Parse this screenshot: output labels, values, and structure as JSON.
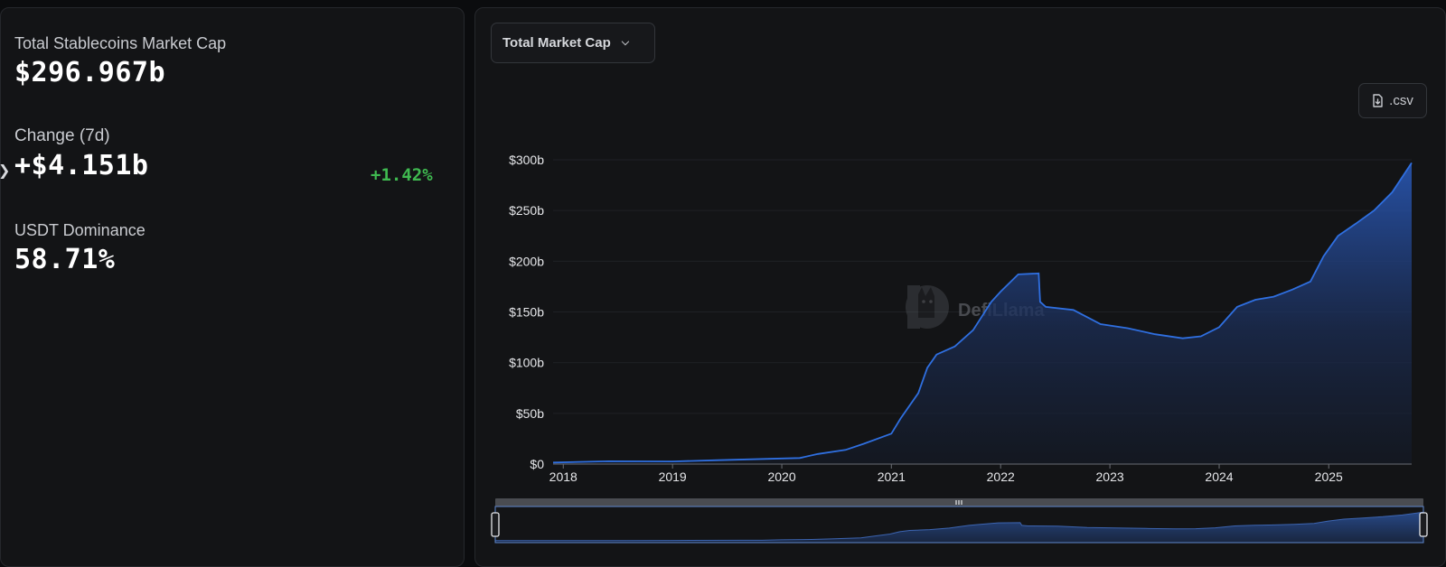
{
  "stats": {
    "total_label": "Total Stablecoins Market Cap",
    "total_value": "$296.967b",
    "change_label": "Change (7d)",
    "change_value": "+$4.151b",
    "change_pct": "+1.42%",
    "dominance_label": "USDT Dominance",
    "dominance_value": "58.71%"
  },
  "controls": {
    "metric_select": "Total Market Cap",
    "csv_label": ".csv"
  },
  "watermark": "DefiLlama",
  "colors": {
    "accent": "#2f6fe0",
    "positive": "#3fb950",
    "background": "#131416"
  },
  "chart_data": {
    "type": "area",
    "title": "",
    "xlabel": "",
    "ylabel": "",
    "ylim": [
      0,
      300
    ],
    "y_ticks": [
      0,
      50,
      100,
      150,
      200,
      250,
      300
    ],
    "y_tick_labels": [
      "$0",
      "$50b",
      "$100b",
      "$150b",
      "$200b",
      "$250b",
      "$300b"
    ],
    "x_ticks": [
      "2018",
      "2019",
      "2020",
      "2021",
      "2022",
      "2023",
      "2024",
      "2025"
    ],
    "xlim": [
      "2017-11-28",
      "2025-10-05"
    ],
    "grid": true,
    "series": [
      {
        "values": [
          {
            "x": "2017-11-28",
            "y": 1.5
          },
          {
            "x": "2018-06-01",
            "y": 2.8
          },
          {
            "x": "2019-01-01",
            "y": 2.6
          },
          {
            "x": "2019-06-01",
            "y": 3.8
          },
          {
            "x": "2020-01-01",
            "y": 5.5
          },
          {
            "x": "2020-03-01",
            "y": 6
          },
          {
            "x": "2020-05-01",
            "y": 10
          },
          {
            "x": "2020-08-01",
            "y": 14
          },
          {
            "x": "2020-10-01",
            "y": 20
          },
          {
            "x": "2021-01-01",
            "y": 30
          },
          {
            "x": "2021-02-01",
            "y": 45
          },
          {
            "x": "2021-04-01",
            "y": 70
          },
          {
            "x": "2021-05-01",
            "y": 95
          },
          {
            "x": "2021-06-01",
            "y": 108
          },
          {
            "x": "2021-08-01",
            "y": 116
          },
          {
            "x": "2021-10-01",
            "y": 132
          },
          {
            "x": "2021-12-01",
            "y": 160
          },
          {
            "x": "2022-01-01",
            "y": 170
          },
          {
            "x": "2022-03-01",
            "y": 187
          },
          {
            "x": "2022-05-08",
            "y": 188
          },
          {
            "x": "2022-05-13",
            "y": 160
          },
          {
            "x": "2022-06-01",
            "y": 155
          },
          {
            "x": "2022-09-01",
            "y": 152
          },
          {
            "x": "2022-12-01",
            "y": 138
          },
          {
            "x": "2023-03-01",
            "y": 134
          },
          {
            "x": "2023-06-01",
            "y": 128
          },
          {
            "x": "2023-09-01",
            "y": 124
          },
          {
            "x": "2023-11-01",
            "y": 126
          },
          {
            "x": "2024-01-01",
            "y": 135
          },
          {
            "x": "2024-03-01",
            "y": 155
          },
          {
            "x": "2024-05-01",
            "y": 162
          },
          {
            "x": "2024-07-01",
            "y": 165
          },
          {
            "x": "2024-09-01",
            "y": 172
          },
          {
            "x": "2024-11-01",
            "y": 180
          },
          {
            "x": "2024-12-15",
            "y": 205
          },
          {
            "x": "2025-02-01",
            "y": 225
          },
          {
            "x": "2025-04-01",
            "y": 237
          },
          {
            "x": "2025-06-01",
            "y": 250
          },
          {
            "x": "2025-08-01",
            "y": 268
          },
          {
            "x": "2025-10-05",
            "y": 297
          }
        ]
      }
    ]
  }
}
